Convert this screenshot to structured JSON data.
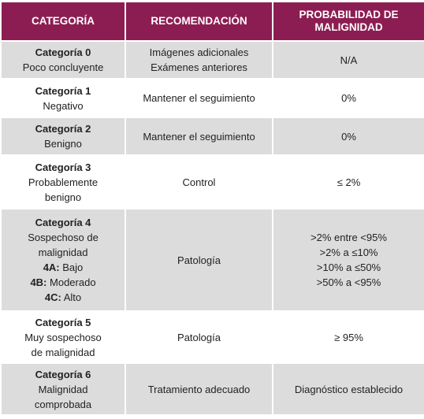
{
  "table": {
    "header": [
      "CATEGORÍA",
      "RECOMENDACIÓN",
      "PROBABILIDAD DE MALIGNIDAD"
    ],
    "rows": [
      {
        "category": "Categoría 0",
        "description": "Poco concluyente",
        "recommendation": [
          "Imágenes adicionales",
          "Exámenes anteriores"
        ],
        "probability": [
          "N/A"
        ]
      },
      {
        "category": "Categoría 1",
        "description": "Negativo",
        "recommendation": [
          "Mantener el seguimiento"
        ],
        "probability": [
          "0%"
        ]
      },
      {
        "category": "Categoría 2",
        "description": "Benigno",
        "recommendation": [
          "Mantener el seguimiento"
        ],
        "probability": [
          "0%"
        ]
      },
      {
        "category": "Categoría 3",
        "description": "Probablemente benigno",
        "recommendation": [
          "Control"
        ],
        "probability": [
          "≤ 2%"
        ]
      },
      {
        "category": "Categoría 4",
        "description": "Sospechoso de malignidad",
        "subcategories": [
          {
            "code": "4A:",
            "label": "Bajo"
          },
          {
            "code": "4B:",
            "label": "Moderado"
          },
          {
            "code": "4C:",
            "label": "Alto"
          }
        ],
        "recommendation": [
          "Patología"
        ],
        "probability": [
          ">2% entre <95%",
          ">2% a ≤10%",
          ">10% a ≤50%",
          ">50% a <95%"
        ]
      },
      {
        "category": "Categoría 5",
        "description": "Muy sospechoso de malignidad",
        "recommendation": [
          "Patología"
        ],
        "probability": [
          "≥ 95%"
        ]
      },
      {
        "category": "Categoría 6",
        "description": "Malignidad comprobada",
        "recommendation": [
          "Tratamiento adecuado"
        ],
        "probability": [
          "Diagnóstico establecido"
        ]
      }
    ]
  }
}
